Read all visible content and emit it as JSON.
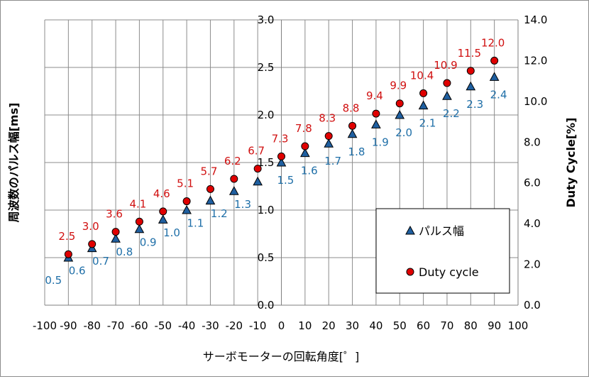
{
  "chart_data": {
    "type": "scatter",
    "xlabel": "サーボモーターの回転角度[゜]",
    "ylabel_left": "周波数のパルス幅[ms]",
    "ylabel_right": "Duty Cycle[%]",
    "xlim": [
      -100,
      100
    ],
    "xticks": [
      -100,
      -90,
      -80,
      -70,
      -60,
      -50,
      -40,
      -30,
      -20,
      -10,
      0,
      10,
      20,
      30,
      40,
      50,
      60,
      70,
      80,
      90,
      100
    ],
    "ylim_left": [
      0,
      3
    ],
    "yticks_left": [
      "0.0",
      "0.5",
      "1.0",
      "1.5",
      "2.0",
      "2.5",
      "3.0"
    ],
    "ylim_right": [
      0,
      14
    ],
    "yticks_right": [
      "0.0",
      "2.0",
      "4.0",
      "6.0",
      "8.0",
      "10.0",
      "12.0",
      "14.0"
    ],
    "grid": true,
    "legend_position": "bottom-right",
    "x": [
      -90,
      -80,
      -70,
      -60,
      -50,
      -40,
      -30,
      -20,
      -10,
      0,
      10,
      20,
      30,
      40,
      50,
      60,
      70,
      80,
      90
    ],
    "series": [
      {
        "name": "パルス幅",
        "axis": "left",
        "marker": "triangle",
        "color": "#1f5fa0",
        "values": [
          0.5,
          0.6,
          0.7,
          0.8,
          0.9,
          1.0,
          1.1,
          1.2,
          1.3,
          1.5,
          1.6,
          1.7,
          1.8,
          1.9,
          2.0,
          2.1,
          2.2,
          2.3,
          2.4
        ],
        "labels": [
          "0.5",
          "0.6",
          "0.7",
          "0.8",
          "0.9",
          "1.0",
          "1.1",
          "1.2",
          "1.3",
          "1.5",
          "1.6",
          "1.7",
          "1.8",
          "1.9",
          "2.0",
          "2.1",
          "2.2",
          "2.3",
          "2.4"
        ]
      },
      {
        "name": "Duty cycle",
        "axis": "right",
        "marker": "circle",
        "color": "#e00000",
        "values": [
          2.5,
          3.0,
          3.6,
          4.1,
          4.6,
          5.1,
          5.7,
          6.2,
          6.7,
          7.3,
          7.8,
          8.3,
          8.8,
          9.4,
          9.9,
          10.4,
          10.9,
          11.5,
          12.0
        ],
        "labels": [
          "2.5",
          "3.0",
          "3.6",
          "4.1",
          "4.6",
          "5.1",
          "5.7",
          "6.2",
          "6.7",
          "7.3",
          "7.8",
          "8.3",
          "8.8",
          "9.4",
          "9.9",
          "10.4",
          "10.9",
          "11.5",
          "12.0"
        ]
      }
    ]
  }
}
